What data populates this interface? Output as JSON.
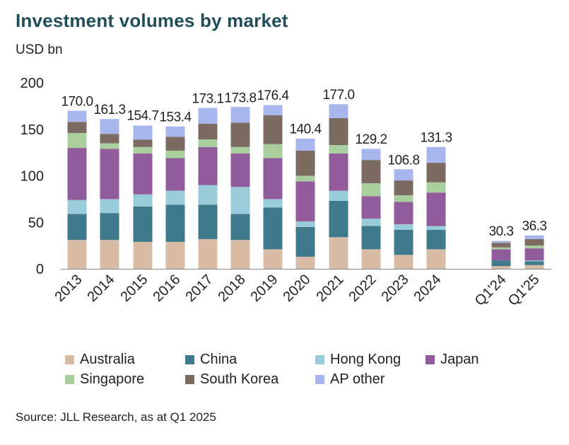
{
  "title": "Investment volumes by market",
  "unit": "USD bn",
  "source": "Source: JLL Research, as at Q1 2025",
  "chart_data": {
    "type": "bar",
    "stacked": true,
    "title": "Investment volumes by market",
    "ylabel": "USD bn",
    "xlabel": "",
    "ylim": [
      0,
      200
    ],
    "yticks": [
      0,
      50,
      100,
      150,
      200
    ],
    "grid": false,
    "legend_position": "bottom",
    "categories": [
      "2013",
      "2014",
      "2015",
      "2016",
      "2017",
      "2018",
      "2019",
      "2020",
      "2021",
      "2022",
      "2023",
      "2024",
      "Q1'24",
      "Q1'25"
    ],
    "totals": [
      "170.0",
      "161.3",
      "154.7",
      "153.4",
      "173.1",
      "173.8",
      "176.4",
      "140.4",
      "177.0",
      "129.2",
      "106.8",
      "131.3",
      "30.3",
      "36.3"
    ],
    "series": [
      {
        "name": "Australia",
        "color": "#d9bca5",
        "values": [
          31,
          31,
          29,
          29,
          32,
          31,
          21,
          13,
          34,
          21,
          15,
          21,
          3,
          4
        ]
      },
      {
        "name": "China",
        "color": "#3e7a8c",
        "values": [
          28,
          29,
          38,
          40,
          37,
          28,
          45,
          32,
          39,
          25,
          27,
          21,
          6,
          4
        ]
      },
      {
        "name": "Hong Kong",
        "color": "#99cbd8",
        "values": [
          15,
          15,
          13,
          15,
          21,
          29,
          9,
          6,
          11,
          8,
          6,
          4,
          0,
          1
        ]
      },
      {
        "name": "Japan",
        "color": "#925b9c",
        "values": [
          56,
          54,
          44,
          35,
          41,
          36,
          44,
          43,
          40,
          24,
          24,
          36,
          12,
          13
        ]
      },
      {
        "name": "Singapore",
        "color": "#a9cf9f",
        "values": [
          16,
          6,
          7,
          8,
          8,
          7,
          15,
          6,
          9,
          14,
          7,
          11,
          2,
          3
        ]
      },
      {
        "name": "South Korea",
        "color": "#7b6b61",
        "values": [
          12,
          10,
          8,
          15,
          17,
          26,
          31,
          27,
          29,
          25,
          16,
          21,
          5,
          7
        ]
      },
      {
        "name": "AP other",
        "color": "#a8b6ee",
        "values": [
          12,
          16,
          15,
          11,
          17,
          17,
          11,
          13,
          15,
          12,
          12,
          17,
          2,
          4
        ]
      }
    ]
  }
}
